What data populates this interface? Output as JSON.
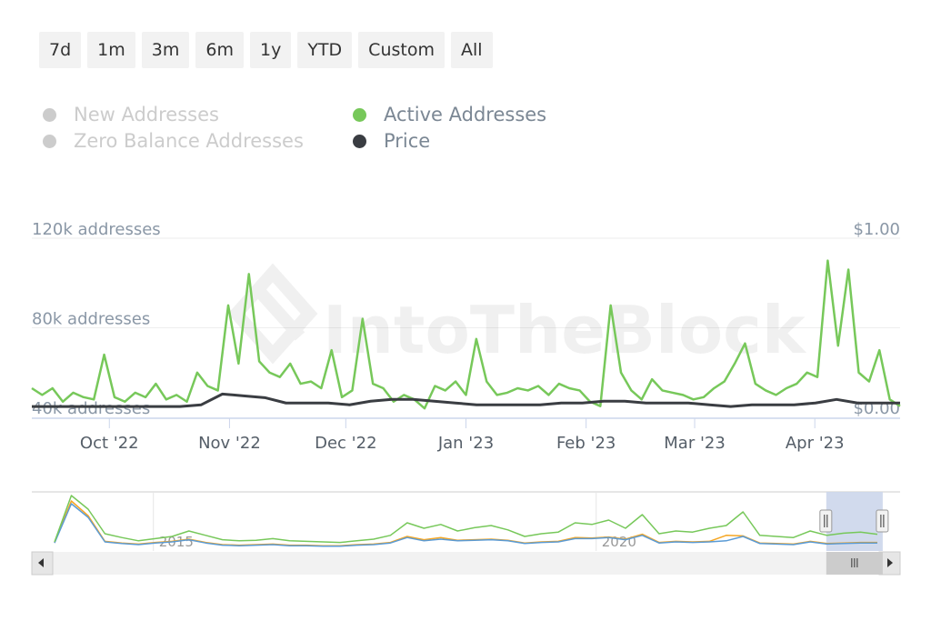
{
  "range_buttons": [
    "7d",
    "1m",
    "3m",
    "6m",
    "1y",
    "YTD",
    "Custom",
    "All"
  ],
  "legend": [
    {
      "label": "New Addresses",
      "color": "#cccccc",
      "text_color": "#cccccc",
      "enabled": false
    },
    {
      "label": "Zero Balance Addresses",
      "color": "#cccccc",
      "text_color": "#cccccc",
      "enabled": false
    },
    {
      "label": "Active Addresses",
      "color": "#77c85a",
      "text_color": "#7b8794",
      "enabled": true
    },
    {
      "label": "Price",
      "color": "#3a3d42",
      "text_color": "#7b8794",
      "enabled": true
    }
  ],
  "watermark": "IntoTheBlock",
  "chart_data": {
    "type": "line",
    "x_range": [
      "2022-09-11",
      "2023-04-23"
    ],
    "x_ticks": [
      {
        "label": "Oct '22",
        "day": 20
      },
      {
        "label": "Nov '22",
        "day": 51
      },
      {
        "label": "Dec '22",
        "day": 81
      },
      {
        "label": "Jan '23",
        "day": 112
      },
      {
        "label": "Feb '23",
        "day": 143
      },
      {
        "label": "Mar '23",
        "day": 171
      },
      {
        "label": "Apr '23",
        "day": 202
      }
    ],
    "y_left": {
      "ticks": [
        {
          "label": "120k addresses",
          "value": 120
        },
        {
          "label": "80k addresses",
          "value": 80
        },
        {
          "label": "40k addresses",
          "value": 40
        }
      ],
      "range": [
        40,
        120
      ],
      "unit": "k addresses"
    },
    "y_right": {
      "ticks": [
        {
          "label": "$1.00",
          "value": 1
        },
        {
          "label": "$0.00",
          "value": 0
        }
      ],
      "range": [
        0,
        1
      ]
    },
    "series": [
      {
        "name": "Active Addresses",
        "axis": "left",
        "color": "#77c85a",
        "values": [
          53,
          50,
          53,
          47,
          51,
          49,
          48,
          68,
          49,
          47,
          51,
          49,
          55,
          48,
          50,
          47,
          60,
          54,
          52,
          90,
          64,
          104,
          65,
          60,
          58,
          64,
          55,
          56,
          53,
          70,
          49,
          52,
          84,
          55,
          53,
          47,
          50,
          48,
          44,
          54,
          52,
          56,
          50,
          75,
          56,
          50,
          51,
          53,
          52,
          54,
          50,
          55,
          53,
          52,
          47,
          45,
          90,
          60,
          52,
          48,
          57,
          52,
          51,
          50,
          48,
          49,
          53,
          56,
          64,
          73,
          55,
          52,
          50,
          53,
          55,
          60,
          58,
          110,
          72,
          106,
          60,
          56,
          70,
          48,
          45
        ]
      },
      {
        "name": "Price",
        "axis": "right",
        "color": "#3a3d42",
        "values": [
          0.06,
          0.06,
          0.06,
          0.06,
          0.06,
          0.06,
          0.06,
          0.06,
          0.07,
          0.13,
          0.12,
          0.11,
          0.08,
          0.08,
          0.08,
          0.07,
          0.09,
          0.1,
          0.1,
          0.09,
          0.08,
          0.07,
          0.07,
          0.07,
          0.07,
          0.08,
          0.08,
          0.09,
          0.09,
          0.08,
          0.08,
          0.08,
          0.07,
          0.06,
          0.07,
          0.07,
          0.07,
          0.08,
          0.1,
          0.08,
          0.08,
          0.08
        ]
      }
    ],
    "navigator": {
      "x_ticks": [
        {
          "label": "2015",
          "pos": 0.14
        },
        {
          "label": "2020",
          "pos": 0.65
        }
      ],
      "selected": [
        0.915,
        0.98
      ],
      "series": [
        {
          "name": "Active Addresses",
          "color": "#77c85a",
          "values": [
            10,
            95,
            70,
            25,
            18,
            12,
            16,
            20,
            30,
            22,
            14,
            12,
            13,
            16,
            12,
            11,
            10,
            9,
            12,
            15,
            22,
            45,
            35,
            42,
            30,
            36,
            40,
            32,
            20,
            25,
            28,
            45,
            42,
            50,
            35,
            60,
            25,
            30,
            28,
            35,
            40,
            65,
            22,
            20,
            18,
            30,
            22,
            26,
            28,
            24
          ]
        },
        {
          "name": "New Addresses",
          "color": "#5b9bd5",
          "values": [
            8,
            80,
            55,
            10,
            7,
            5,
            8,
            10,
            14,
            8,
            4,
            3,
            4,
            5,
            3,
            3,
            2,
            2,
            4,
            5,
            8,
            18,
            12,
            15,
            12,
            13,
            14,
            12,
            7,
            9,
            10,
            16,
            16,
            18,
            14,
            22,
            8,
            10,
            9,
            10,
            12,
            20,
            7,
            6,
            5,
            10,
            6,
            7,
            8,
            8
          ]
        },
        {
          "name": "Zero Balance Addresses",
          "color": "#f5a623",
          "values": [
            9,
            85,
            58,
            11,
            8,
            6,
            9,
            11,
            15,
            9,
            5,
            4,
            5,
            6,
            4,
            4,
            3,
            3,
            5,
            6,
            9,
            20,
            14,
            18,
            13,
            14,
            15,
            13,
            8,
            10,
            11,
            18,
            17,
            19,
            15,
            24,
            9,
            11,
            10,
            11,
            22,
            21,
            8,
            7,
            6,
            11,
            7,
            8,
            9,
            9
          ]
        }
      ]
    }
  }
}
